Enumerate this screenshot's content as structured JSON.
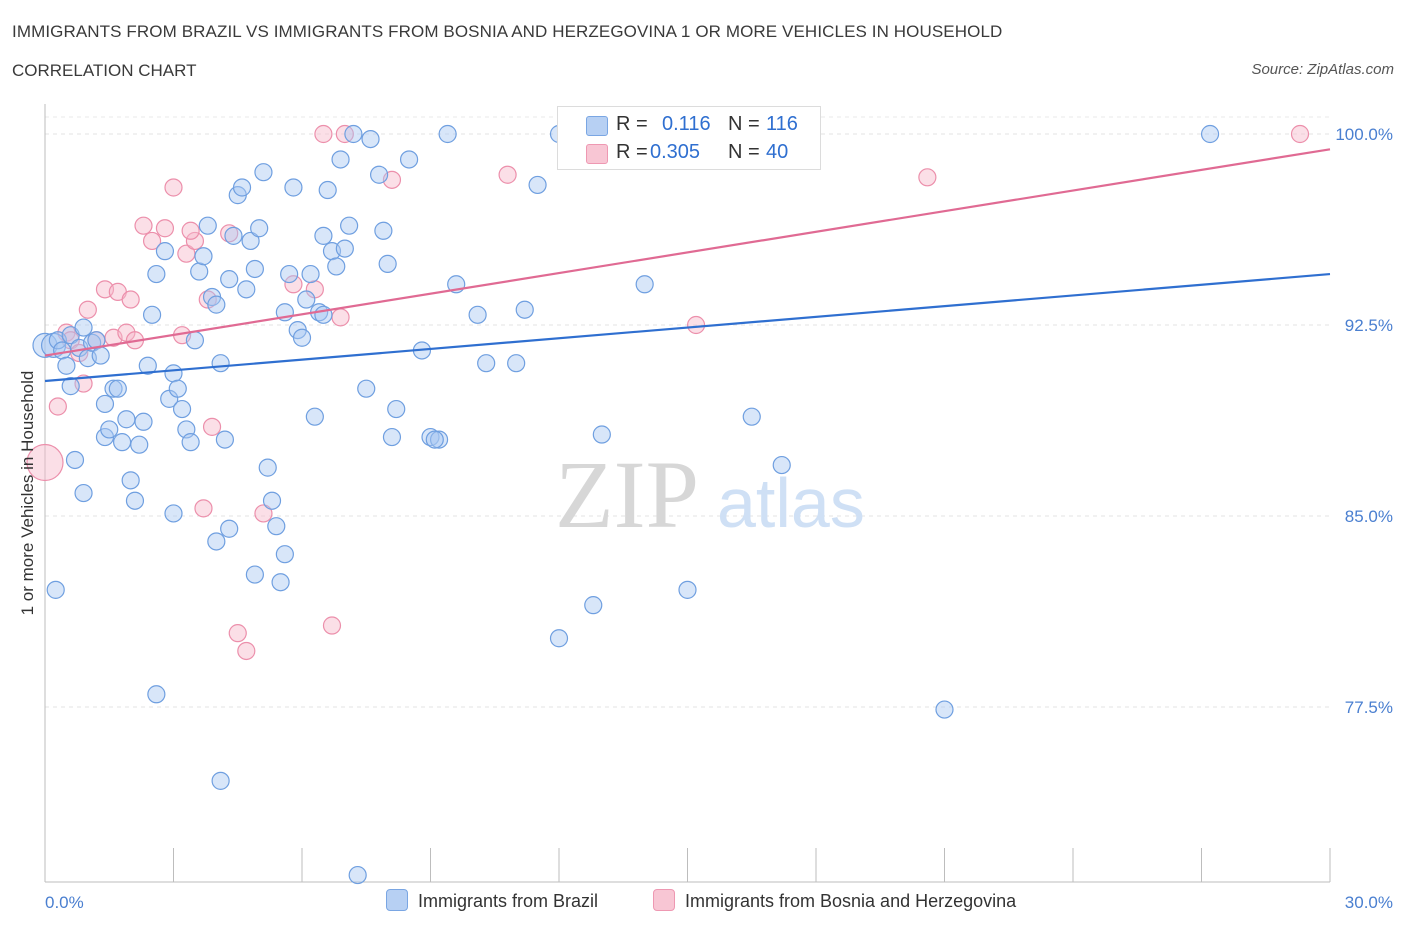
{
  "header": {
    "title": "IMMIGRANTS FROM BRAZIL VS IMMIGRANTS FROM BOSNIA AND HERZEGOVINA 1 OR MORE VEHICLES IN HOUSEHOLD",
    "subtitle": "CORRELATION CHART",
    "source": "Source: ZipAtlas.com"
  },
  "legend": {
    "r_label": "R =",
    "n_label": "N =",
    "rows": [
      {
        "r": "0.116",
        "n": "116",
        "color": "#a9c8f2"
      },
      {
        "r": "0.305",
        "n": "40",
        "color": "#f6b8c9"
      }
    ]
  },
  "watermark": {
    "zip": "ZIP",
    "atlas": "atlas"
  },
  "chart_data": {
    "type": "scatter",
    "title": "IMMIGRANTS FROM BRAZIL VS IMMIGRANTS FROM BOSNIA AND HERZEGOVINA 1 OR MORE VEHICLES IN HOUSEHOLD",
    "subtitle": "CORRELATION CHART",
    "xlabel": "",
    "ylabel": "1 or more Vehicles in Household",
    "xlim": [
      0,
      30
    ],
    "ylim": [
      70.5,
      101
    ],
    "x_tick_labels": [
      "0.0%",
      "30.0%"
    ],
    "y_ticks": [
      77.5,
      85.0,
      92.5,
      100.0
    ],
    "y_tick_labels": [
      "77.5%",
      "85.0%",
      "92.5%",
      "100.0%"
    ],
    "grid": true,
    "legend_position": "top-center",
    "series": [
      {
        "name": "Immigrants from Brazil",
        "color": "#a9c8f2",
        "stroke": "#6f9fe0",
        "trend_color": "#2f6fd0",
        "r": 0.116,
        "n": 116,
        "trend": {
          "x": [
            0,
            30
          ],
          "y": [
            90.3,
            94.5
          ]
        },
        "points": [
          [
            0.0,
            91.7
          ],
          [
            0.2,
            91.7
          ],
          [
            0.3,
            91.9
          ],
          [
            0.4,
            91.5
          ],
          [
            0.5,
            90.9
          ],
          [
            0.6,
            92.1
          ],
          [
            0.8,
            91.6
          ],
          [
            0.9,
            92.4
          ],
          [
            1.0,
            91.2
          ],
          [
            1.1,
            91.8
          ],
          [
            1.2,
            91.9
          ],
          [
            1.3,
            91.3
          ],
          [
            0.6,
            90.1
          ],
          [
            0.7,
            87.2
          ],
          [
            0.9,
            85.9
          ],
          [
            0.25,
            82.1
          ],
          [
            1.4,
            88.1
          ],
          [
            1.5,
            88.4
          ],
          [
            1.4,
            89.4
          ],
          [
            1.6,
            90.0
          ],
          [
            1.7,
            90.0
          ],
          [
            1.8,
            87.9
          ],
          [
            1.9,
            88.8
          ],
          [
            2.0,
            86.4
          ],
          [
            2.1,
            85.6
          ],
          [
            2.2,
            87.8
          ],
          [
            2.3,
            88.7
          ],
          [
            2.4,
            90.9
          ],
          [
            2.5,
            92.9
          ],
          [
            2.6,
            94.5
          ],
          [
            2.8,
            95.4
          ],
          [
            2.9,
            89.6
          ],
          [
            3.0,
            90.6
          ],
          [
            3.1,
            90.0
          ],
          [
            3.2,
            89.2
          ],
          [
            3.3,
            88.4
          ],
          [
            3.4,
            87.9
          ],
          [
            3.5,
            91.9
          ],
          [
            3.6,
            94.6
          ],
          [
            3.7,
            95.2
          ],
          [
            3.8,
            96.4
          ],
          [
            3.9,
            93.6
          ],
          [
            4.0,
            93.3
          ],
          [
            4.1,
            91.0
          ],
          [
            4.2,
            88.0
          ],
          [
            4.3,
            94.3
          ],
          [
            4.4,
            96.0
          ],
          [
            4.5,
            97.6
          ],
          [
            4.6,
            97.9
          ],
          [
            4.7,
            93.9
          ],
          [
            4.8,
            95.8
          ],
          [
            4.9,
            94.7
          ],
          [
            5.0,
            96.3
          ],
          [
            5.1,
            98.5
          ],
          [
            5.2,
            86.9
          ],
          [
            5.3,
            85.6
          ],
          [
            5.4,
            84.6
          ],
          [
            5.5,
            82.4
          ],
          [
            5.6,
            93.0
          ],
          [
            5.7,
            94.5
          ],
          [
            5.8,
            97.9
          ],
          [
            5.9,
            92.3
          ],
          [
            6.0,
            92.0
          ],
          [
            6.1,
            93.5
          ],
          [
            6.2,
            94.5
          ],
          [
            6.3,
            88.9
          ],
          [
            6.4,
            93.0
          ],
          [
            6.5,
            96.0
          ],
          [
            6.6,
            97.8
          ],
          [
            6.7,
            95.4
          ],
          [
            6.8,
            94.8
          ],
          [
            6.9,
            99.0
          ],
          [
            7.0,
            95.5
          ],
          [
            7.1,
            96.4
          ],
          [
            7.2,
            100.0
          ],
          [
            7.6,
            99.8
          ],
          [
            7.8,
            98.4
          ],
          [
            7.9,
            96.2
          ],
          [
            8.0,
            94.9
          ],
          [
            8.1,
            88.1
          ],
          [
            7.5,
            90.0
          ],
          [
            8.2,
            89.2
          ],
          [
            8.5,
            99.0
          ],
          [
            8.8,
            91.5
          ],
          [
            9.0,
            88.1
          ],
          [
            9.2,
            88.0
          ],
          [
            9.4,
            100.0
          ],
          [
            9.6,
            94.1
          ],
          [
            10.1,
            92.9
          ],
          [
            10.3,
            91.0
          ],
          [
            11.0,
            91.0
          ],
          [
            11.2,
            93.1
          ],
          [
            11.5,
            98.0
          ],
          [
            12.0,
            100.0
          ],
          [
            12.2,
            100.0
          ],
          [
            12.8,
            81.5
          ],
          [
            13.0,
            88.2
          ],
          [
            13.3,
            100.0
          ],
          [
            14.0,
            94.1
          ],
          [
            15.0,
            82.1
          ],
          [
            16.5,
            88.9
          ],
          [
            17.0,
            100.0
          ],
          [
            17.2,
            87.0
          ],
          [
            21.0,
            77.4
          ],
          [
            27.2,
            100.0
          ],
          [
            4.0,
            84.0
          ],
          [
            4.3,
            84.5
          ],
          [
            3.0,
            85.1
          ],
          [
            2.6,
            78.0
          ],
          [
            4.1,
            74.6
          ],
          [
            7.3,
            70.9
          ],
          [
            12.0,
            80.2
          ],
          [
            9.1,
            88.0
          ],
          [
            4.9,
            82.7
          ],
          [
            5.6,
            83.5
          ],
          [
            6.5,
            92.9
          ]
        ]
      },
      {
        "name": "Immigrants from Bosnia and Herzegovina",
        "color": "#f6b8c9",
        "stroke": "#ec8fab",
        "trend_color": "#e06a93",
        "r": 0.305,
        "n": 40,
        "trend": {
          "x": [
            0,
            30
          ],
          "y": [
            91.3,
            99.4
          ]
        },
        "points": [
          [
            0.0,
            87.1
          ],
          [
            0.3,
            89.3
          ],
          [
            0.5,
            92.2
          ],
          [
            0.6,
            91.9
          ],
          [
            0.8,
            91.4
          ],
          [
            0.9,
            90.2
          ],
          [
            1.0,
            93.1
          ],
          [
            1.2,
            91.9
          ],
          [
            1.4,
            93.9
          ],
          [
            1.6,
            92.0
          ],
          [
            1.7,
            93.8
          ],
          [
            1.9,
            92.2
          ],
          [
            2.0,
            93.5
          ],
          [
            2.1,
            91.9
          ],
          [
            2.3,
            96.4
          ],
          [
            2.5,
            95.8
          ],
          [
            2.8,
            96.3
          ],
          [
            3.0,
            97.9
          ],
          [
            3.2,
            92.1
          ],
          [
            3.3,
            95.3
          ],
          [
            3.5,
            95.8
          ],
          [
            3.7,
            85.3
          ],
          [
            3.8,
            93.5
          ],
          [
            3.9,
            88.5
          ],
          [
            4.3,
            96.1
          ],
          [
            4.5,
            80.4
          ],
          [
            4.7,
            79.7
          ],
          [
            5.1,
            85.1
          ],
          [
            5.8,
            94.1
          ],
          [
            6.3,
            93.9
          ],
          [
            6.5,
            100.0
          ],
          [
            6.7,
            80.7
          ],
          [
            6.9,
            92.8
          ],
          [
            7.0,
            100.0
          ],
          [
            8.1,
            98.2
          ],
          [
            10.8,
            98.4
          ],
          [
            15.2,
            92.5
          ],
          [
            20.6,
            98.3
          ],
          [
            29.3,
            100.0
          ],
          [
            3.4,
            96.2
          ]
        ]
      }
    ]
  }
}
